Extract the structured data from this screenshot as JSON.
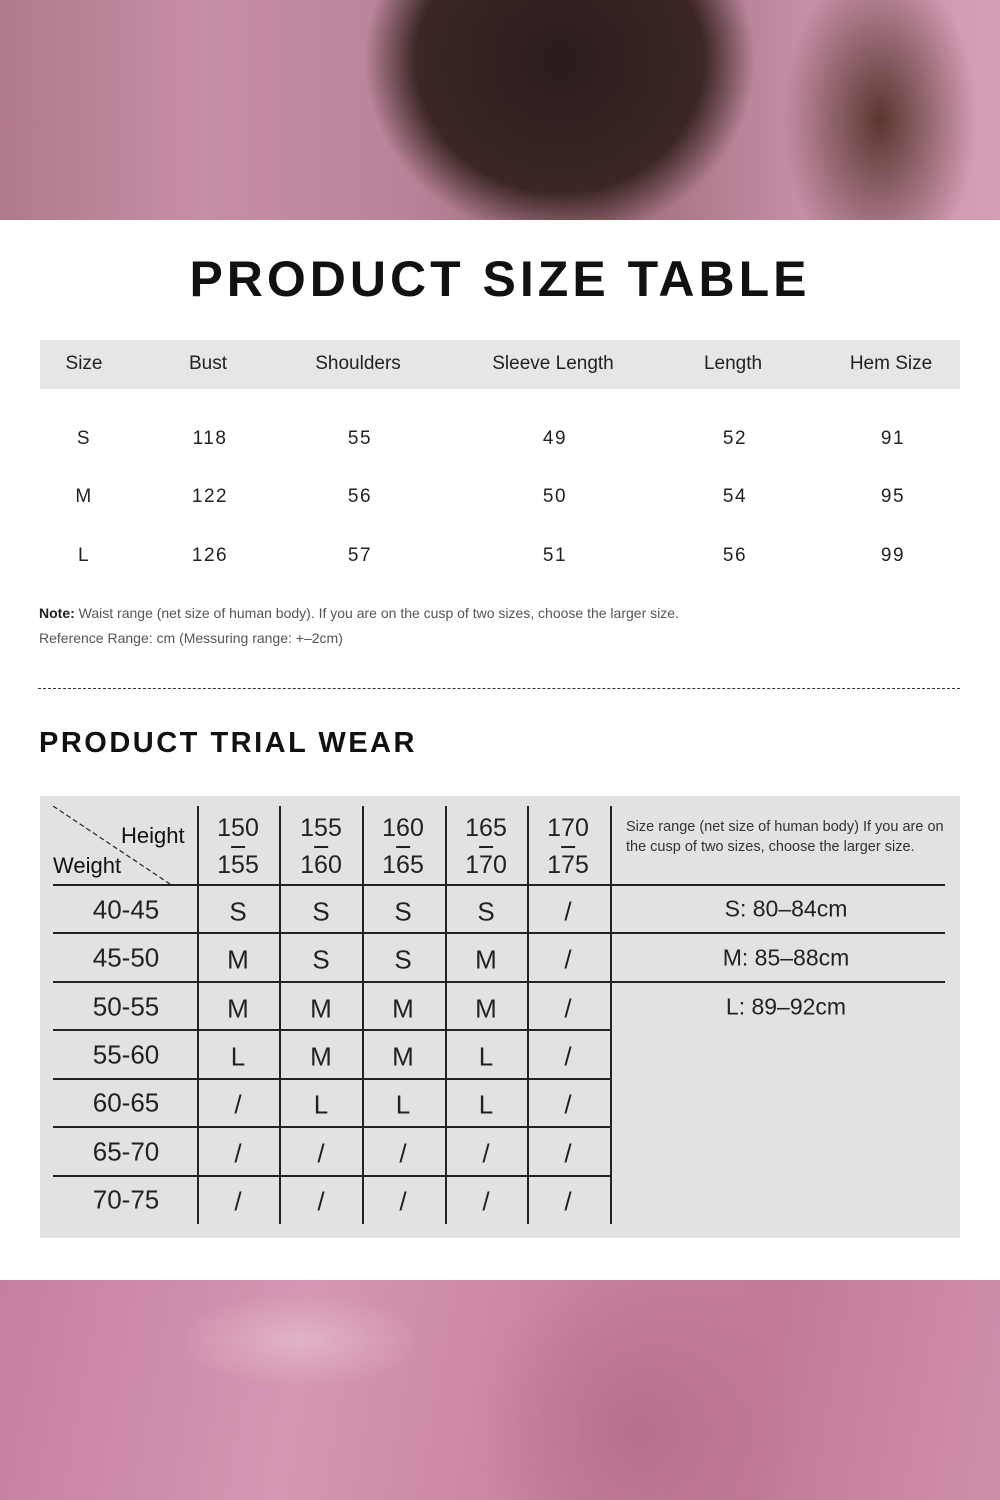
{
  "size_table": {
    "title": "PRODUCT SIZE TABLE",
    "headers": [
      "Size",
      "Bust",
      "Shoulders",
      "Sleeve Length",
      "Length",
      "Hem Size"
    ],
    "rows": [
      [
        "S",
        "118",
        "55",
        "49",
        "52",
        "91"
      ],
      [
        "M",
        "122",
        "56",
        "50",
        "54",
        "95"
      ],
      [
        "L",
        "126",
        "57",
        "51",
        "56",
        "99"
      ]
    ],
    "note_label": "Note:",
    "note_text": "Waist range (net size of human body). If you are on the cusp of two sizes, choose the larger size.",
    "reference": "Reference Range: cm (Messuring range: +–2cm)"
  },
  "trial_wear": {
    "title": "PRODUCT TRIAL WEAR",
    "corner_height": "Height",
    "corner_weight": "Weight",
    "heights": [
      [
        "150",
        "155"
      ],
      [
        "155",
        "160"
      ],
      [
        "160",
        "165"
      ],
      [
        "165",
        "170"
      ],
      [
        "170",
        "175"
      ]
    ],
    "side_note": "Size range (net size of human body) If you are on the cusp of two sizes, choose the larger size.",
    "ranges": [
      "S: 80–84cm",
      "M: 85–88cm",
      "L: 89–92cm"
    ],
    "rows": [
      {
        "weight": "40-45",
        "sizes": [
          "S",
          "S",
          "S",
          "S",
          "/"
        ]
      },
      {
        "weight": "45-50",
        "sizes": [
          "M",
          "S",
          "S",
          "M",
          "/"
        ]
      },
      {
        "weight": "50-55",
        "sizes": [
          "M",
          "M",
          "M",
          "M",
          "/"
        ]
      },
      {
        "weight": "55-60",
        "sizes": [
          "L",
          "M",
          "M",
          "L",
          "/"
        ]
      },
      {
        "weight": "60-65",
        "sizes": [
          "/",
          "L",
          "L",
          "L",
          "/"
        ]
      },
      {
        "weight": "65-70",
        "sizes": [
          "/",
          "/",
          "/",
          "/",
          "/"
        ]
      },
      {
        "weight": "70-75",
        "sizes": [
          "/",
          "/",
          "/",
          "/",
          "/"
        ]
      }
    ]
  }
}
